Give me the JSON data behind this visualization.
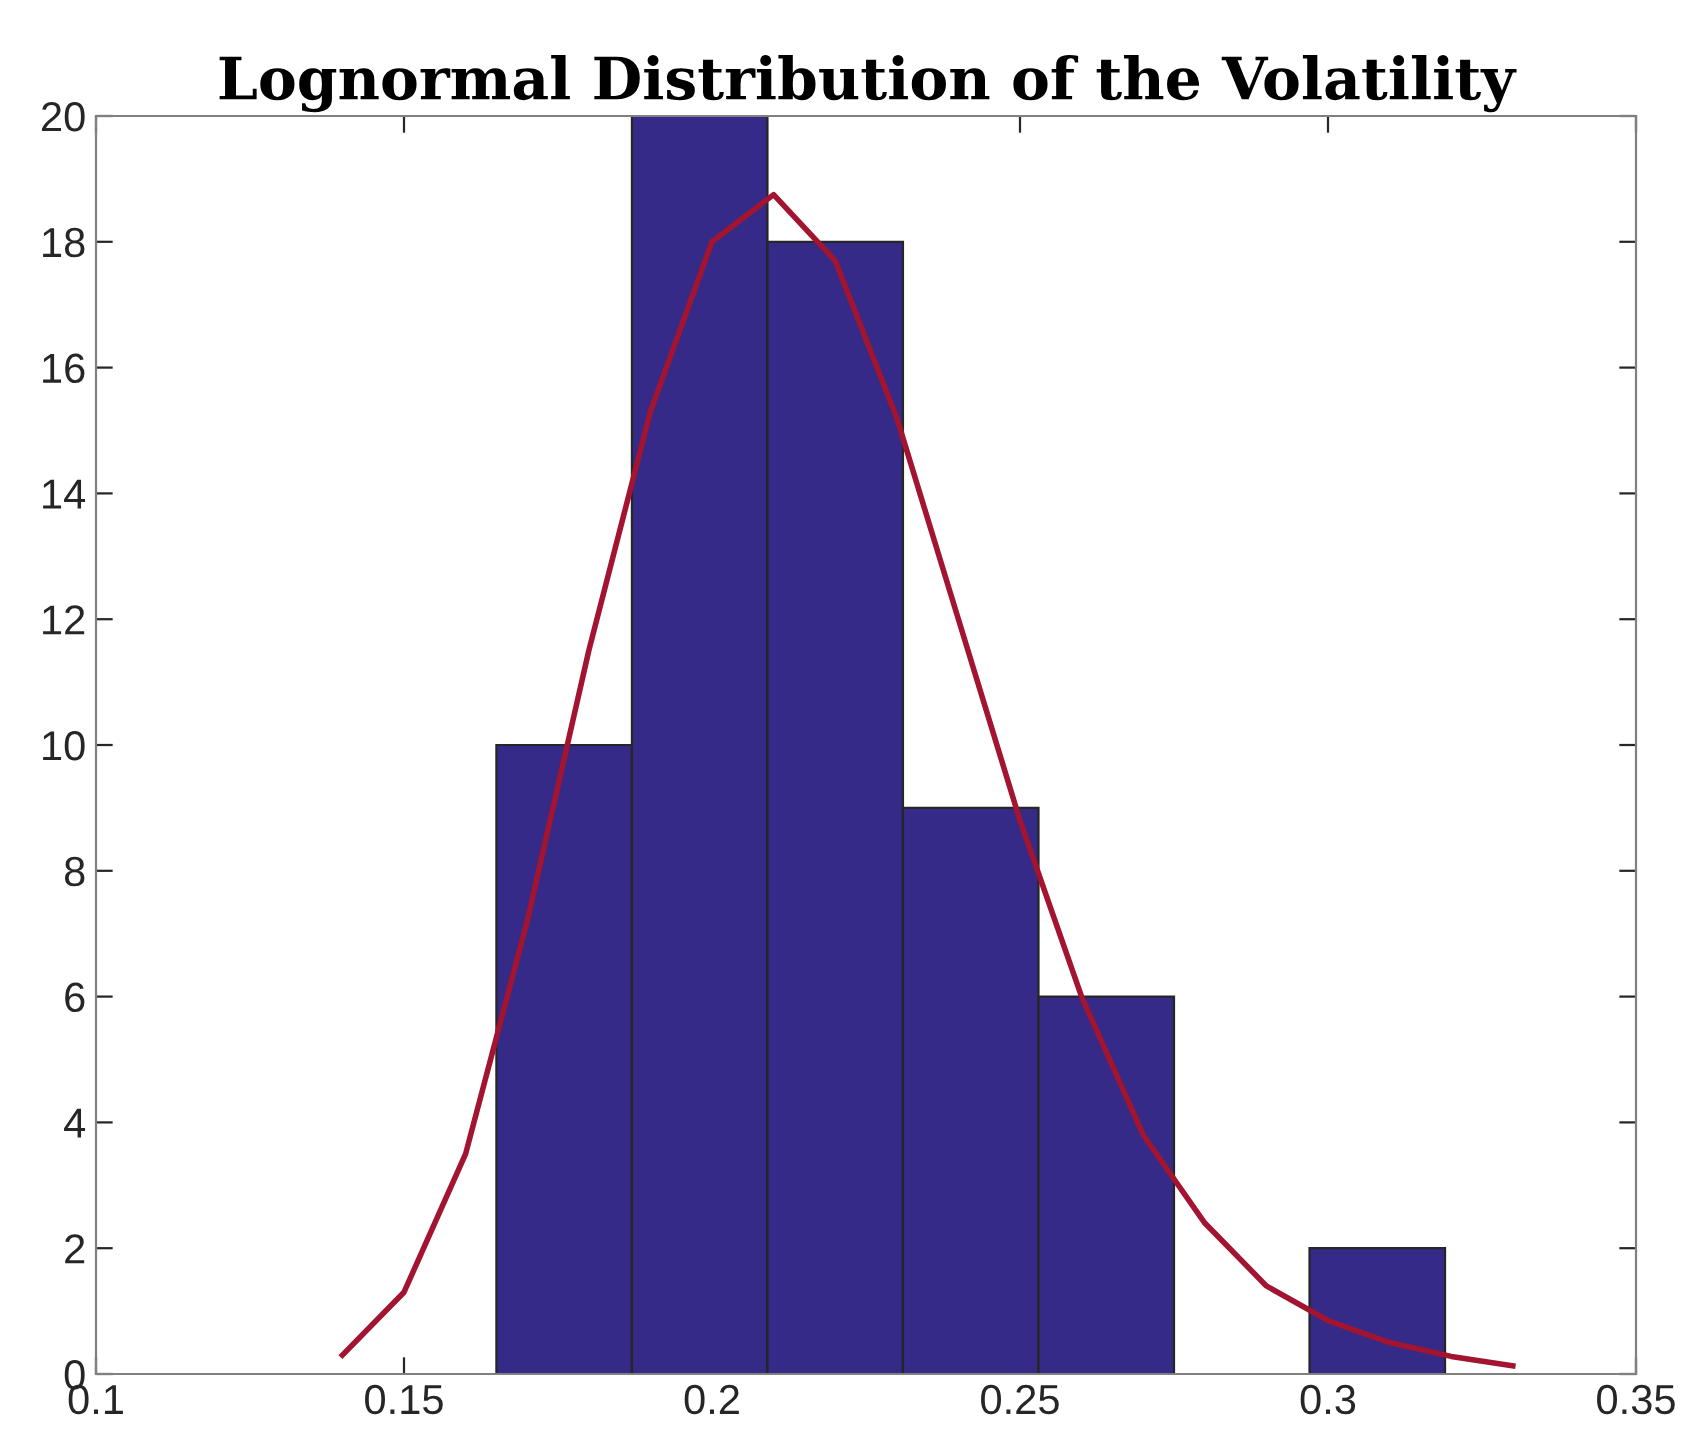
{
  "chart_data": {
    "type": "histogram",
    "title": "Lognormal Distribution of the Volatility",
    "bins": [
      0.165,
      0.187,
      0.209,
      0.231,
      0.253,
      0.275,
      0.297,
      0.319
    ],
    "values": [
      10,
      20,
      18,
      9,
      6,
      0,
      2
    ],
    "color": "#352a87",
    "series": [
      {
        "type": "line",
        "color": "#a2142f",
        "x": [
          0.14,
          0.15,
          0.16,
          0.17,
          0.18,
          0.19,
          0.2,
          0.21,
          0.22,
          0.23,
          0.24,
          0.25,
          0.26,
          0.27,
          0.28,
          0.29,
          0.3,
          0.31,
          0.32,
          0.33
        ],
        "values": [
          0.3,
          1.3,
          3.5,
          7.2,
          11.5,
          15.3,
          18.0,
          18.75,
          17.7,
          15.2,
          12.0,
          8.8,
          6.0,
          3.8,
          2.4,
          1.4,
          0.85,
          0.5,
          0.28,
          0.13
        ]
      }
    ],
    "xlim": [
      0.1,
      0.35
    ],
    "xticks": [
      0.1,
      0.15,
      0.2,
      0.25,
      0.3,
      0.35
    ],
    "ylim": [
      0,
      20
    ],
    "yticks": [
      0,
      2,
      4,
      6,
      8,
      10,
      12,
      14,
      16,
      18,
      20
    ],
    "grid": false
  }
}
